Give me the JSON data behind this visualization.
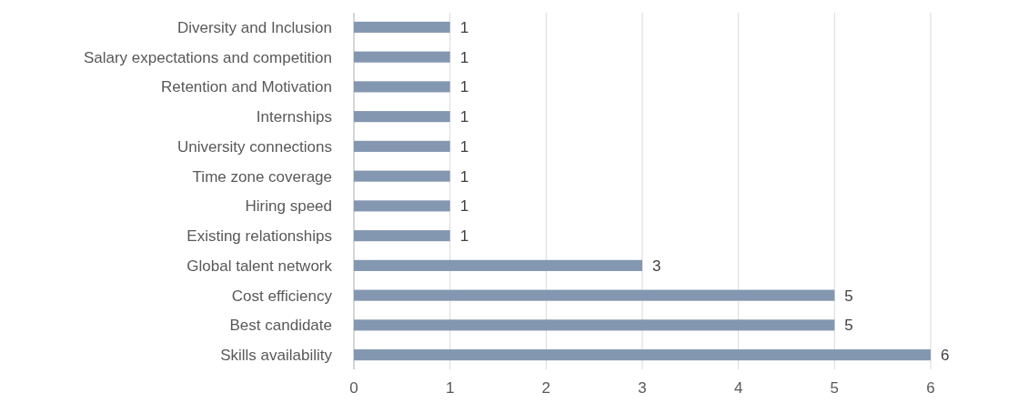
{
  "chart_data": {
    "type": "bar",
    "orientation": "horizontal",
    "categories": [
      "Diversity and Inclusion",
      "Salary expectations and competition",
      "Retention and Motivation",
      "Internships",
      "University connections",
      "Time zone coverage",
      "Hiring speed",
      "Existing relationships",
      "Global talent network",
      "Cost efficiency",
      "Best candidate",
      "Skills availability"
    ],
    "values": [
      1,
      1,
      1,
      1,
      1,
      1,
      1,
      1,
      3,
      5,
      5,
      6
    ],
    "color": "#8497b0",
    "xlim": [
      0,
      6
    ],
    "xticks": [
      0,
      1,
      2,
      3,
      4,
      5,
      6
    ],
    "grid": "x",
    "data_labels": true
  }
}
